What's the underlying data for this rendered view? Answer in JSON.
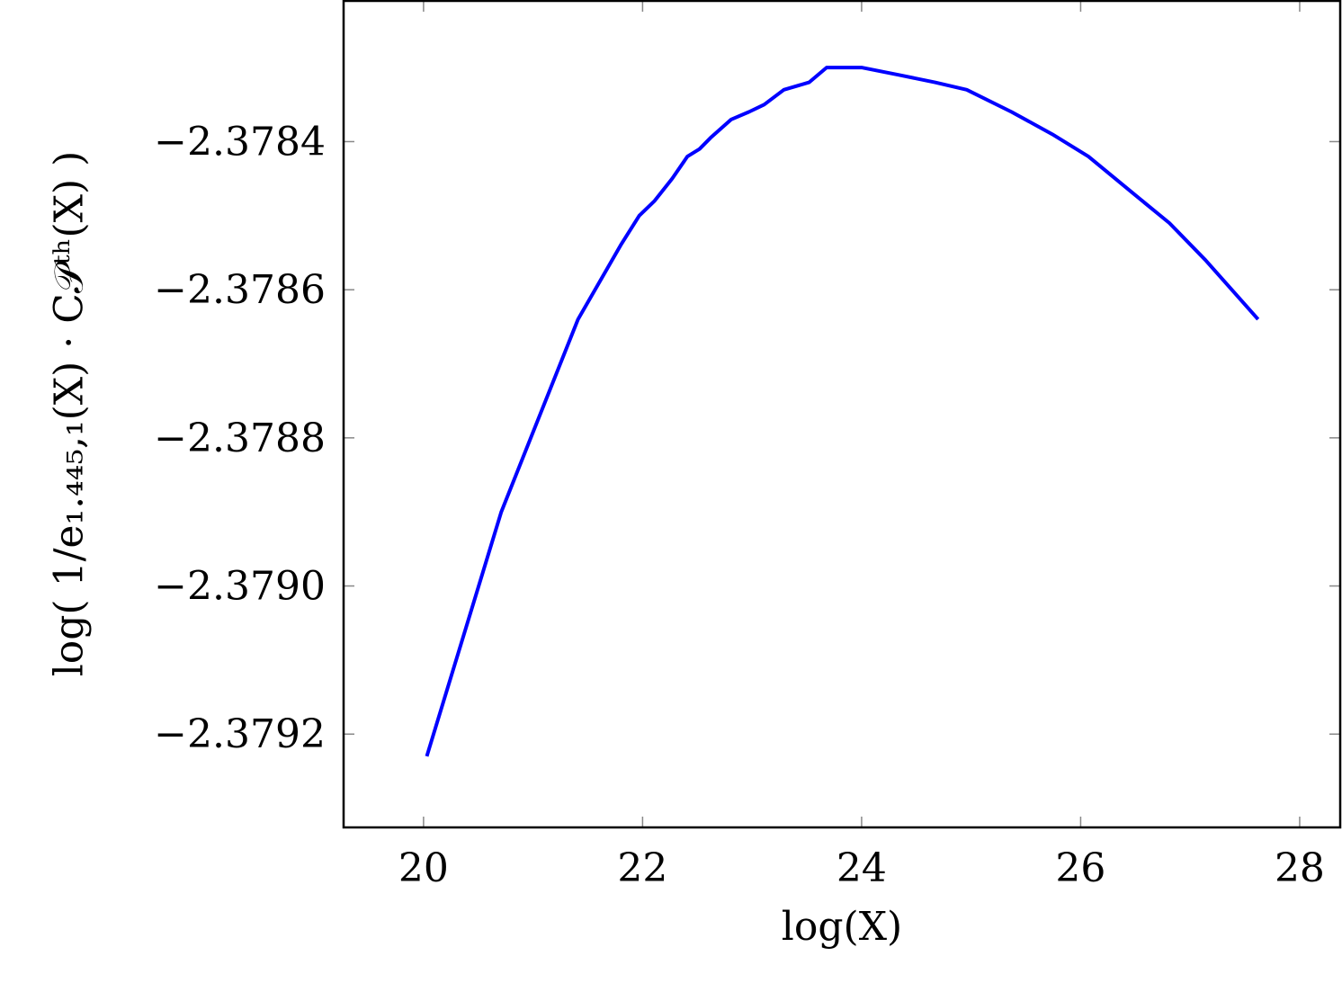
{
  "chart_data": {
    "type": "line",
    "x_label": "log(X)",
    "y_label": "log( 1/e₁.₄₄₅,₁(X) · C𝒫ᵗʰ(X) )",
    "x": [
      20.03,
      20.71,
      21.41,
      21.8,
      21.97,
      22.11,
      22.27,
      22.41,
      22.52,
      22.62,
      22.81,
      22.97,
      23.11,
      23.29,
      23.52,
      23.68,
      24.0,
      24.34,
      24.67,
      24.96,
      25.37,
      25.74,
      26.07,
      26.48,
      26.81,
      27.14,
      27.62
    ],
    "series": [
      {
        "color": "#0000ff",
        "values": [
          -2.37923,
          -2.3789,
          -2.37864,
          -2.37854,
          -2.3785,
          -2.37848,
          -2.37845,
          -2.37842,
          -2.37841,
          -2.378395,
          -2.37837,
          -2.37836,
          -2.37835,
          -2.37833,
          -2.37832,
          -2.3783,
          -2.3783,
          -2.37831,
          -2.37832,
          -2.37833,
          -2.37836,
          -2.37839,
          -2.37842,
          -2.37847,
          -2.37851,
          -2.37856,
          -2.37864
        ]
      }
    ],
    "xlim": [
      19.27,
      28.37
    ],
    "ylim": [
      -2.379326,
      -2.37821
    ],
    "xticks": [
      20,
      22,
      24,
      26,
      28
    ],
    "yticks": [
      {
        "value": -2.3792,
        "label": "−2.3792"
      },
      {
        "value": -2.379,
        "label": "−2.3790"
      },
      {
        "value": -2.3788,
        "label": "−2.3788"
      },
      {
        "value": -2.3786,
        "label": "−2.3786"
      },
      {
        "value": -2.3784,
        "label": "−2.3784"
      }
    ]
  }
}
